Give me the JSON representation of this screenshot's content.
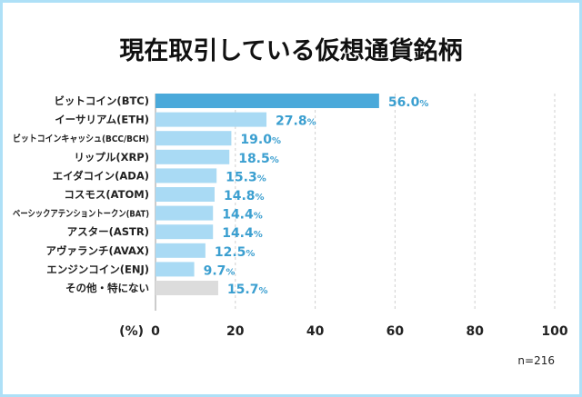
{
  "chart_data": {
    "type": "bar",
    "orientation": "horizontal",
    "title": "現在取引している仮想通貨銘柄",
    "categories": [
      "ビットコイン(BTC)",
      "イーサリアム(ETH)",
      "ビットコインキャッシュ(BCC/BCH)",
      "リップル(XRP)",
      "エイダコイン(ADA)",
      "コスモス(ATOM)",
      "ベーシックアテンショントークン(BAT)",
      "アスター(ASTR)",
      "アヴァランチ(AVAX)",
      "エンジンコイン(ENJ)",
      "その他・特にない"
    ],
    "values": [
      56.0,
      27.8,
      19.0,
      18.5,
      15.3,
      14.8,
      14.4,
      14.4,
      12.5,
      9.7,
      15.7
    ],
    "value_suffix": "%",
    "xlabel": "(%)",
    "xlim": [
      0,
      100
    ],
    "xticks": [
      0,
      20,
      40,
      60,
      80,
      100
    ],
    "grid": "vertical dashed",
    "note": "n=216",
    "colors": {
      "highlight": "#4aa9da",
      "bar": "#a9daf4",
      "other": "#dcdcdc",
      "value_text": "#3b9fd0",
      "border": "#aee0f7"
    }
  }
}
